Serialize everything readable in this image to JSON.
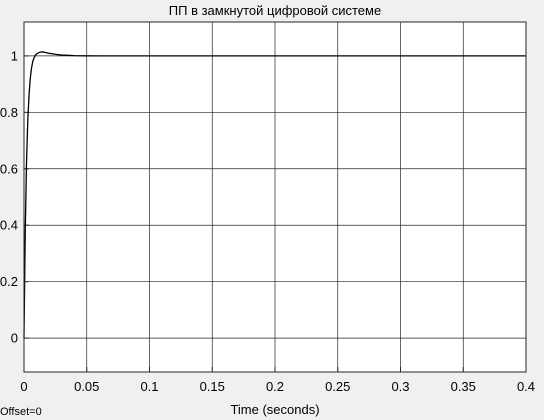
{
  "figure": {
    "title": "ПП в замкнутой цифровой системе",
    "offset_label": "Offset=0"
  },
  "chart_data": {
    "type": "line",
    "title": "ПП в замкнутой цифровой системе",
    "xlabel": "Time (seconds)",
    "ylabel": "",
    "xlim": [
      0,
      0.4
    ],
    "ylim": [
      -0.12,
      1.12
    ],
    "xticks": [
      0,
      0.05,
      0.1,
      0.15,
      0.2,
      0.25,
      0.3,
      0.35,
      0.4
    ],
    "xtick_labels": [
      "0",
      "0.05",
      "0.1",
      "0.15",
      "0.2",
      "0.25",
      "0.3",
      "0.35",
      "0.4"
    ],
    "yticks": [
      0,
      0.2,
      0.4,
      0.6,
      0.8,
      1
    ],
    "ytick_labels": [
      "0",
      "0.2",
      "0.4",
      "0.6",
      "0.8",
      "1"
    ],
    "grid": true,
    "legend": "none",
    "colors": {
      "line": "#000000",
      "plot_bg": "#ffffff",
      "figure_bg": "#f0f0f0",
      "grid": "#262626"
    },
    "series": [
      {
        "x": [
          0,
          0.001,
          0.002,
          0.003,
          0.004,
          0.005,
          0.006,
          0.007,
          0.008,
          0.009,
          0.01,
          0.012,
          0.014,
          0.016,
          0.018,
          0.02,
          0.023,
          0.026,
          0.03,
          0.035,
          0.04,
          0.045,
          0.05,
          0.06,
          0.07,
          0.08,
          0.1,
          0.15,
          0.2,
          0.25,
          0.3,
          0.35,
          0.4
        ],
        "y": [
          0,
          0.38,
          0.62,
          0.77,
          0.86,
          0.92,
          0.957,
          0.98,
          0.993,
          1.002,
          1.007,
          1.012,
          1.014,
          1.013,
          1.011,
          1.009,
          1.007,
          1.005,
          1.003,
          1.002,
          1.001,
          1.0005,
          1.0002,
          1.0,
          1.0,
          1.0,
          1.0,
          1.0,
          1.0,
          1.0,
          1.0,
          1.0,
          1.0
        ]
      }
    ]
  }
}
